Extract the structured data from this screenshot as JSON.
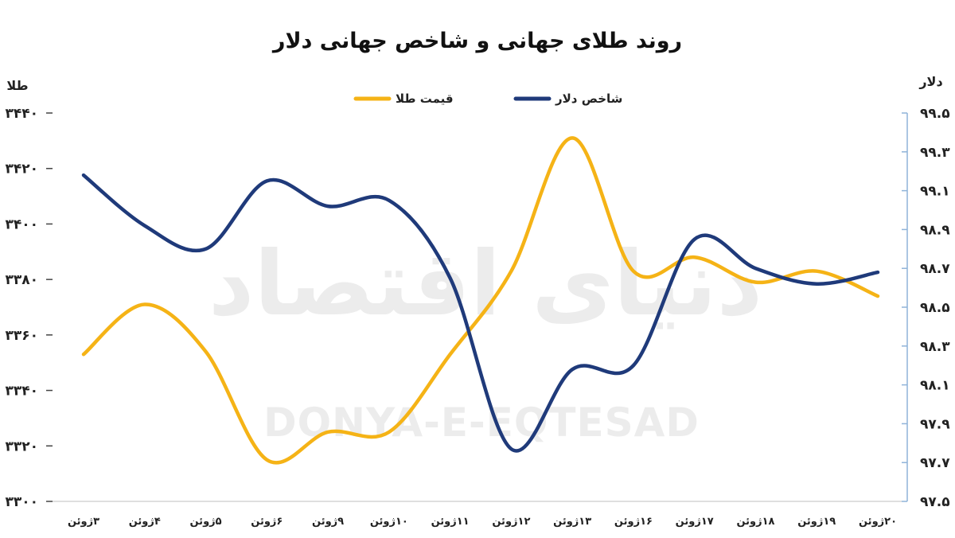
{
  "chart_data": {
    "type": "line",
    "title": "روند طلای جهانی و شاخص جهانی دلار",
    "categories": [
      "۳ژوئن",
      "۴ژوئن",
      "۵ژوئن",
      "۶ژوئن",
      "۹ژوئن",
      "۱۰ژوئن",
      "۱۱ژوئن",
      "۱۲ژوئن",
      "۱۳ژوئن",
      "۱۶ژوئن",
      "۱۷ژوئن",
      "۱۸ژوئن",
      "۱۹ژوئن",
      "۲۰ژوئن"
    ],
    "left_axis": {
      "label": "طلا",
      "range": [
        3300,
        3440
      ],
      "ticks": [
        "۳۳۰۰",
        "۳۳۲۰",
        "۳۳۴۰",
        "۳۳۶۰",
        "۳۳۸۰",
        "۳۴۰۰",
        "۳۴۲۰",
        "۳۴۴۰"
      ],
      "tick_values": [
        3300,
        3320,
        3340,
        3360,
        3380,
        3400,
        3420,
        3440
      ]
    },
    "right_axis": {
      "label": "دلار",
      "range": [
        97.5,
        99.5
      ],
      "ticks": [
        "۹۷.۵",
        "۹۷.۷",
        "۹۷.۹",
        "۹۸.۱",
        "۹۸.۳",
        "۹۸.۵",
        "۹۸.۷",
        "۹۸.۹",
        "۹۹.۱",
        "۹۹.۳",
        "۹۹.۵"
      ],
      "tick_values": [
        97.5,
        97.7,
        97.9,
        98.1,
        98.3,
        98.5,
        98.7,
        98.9,
        99.1,
        99.3,
        99.5
      ]
    },
    "series": [
      {
        "name": "قیمت طلا",
        "axis": "left",
        "color": "#f5b316",
        "values": [
          3353,
          3371,
          3354,
          3315,
          3325,
          3325,
          3353,
          3383,
          3431,
          3383,
          3388,
          3379,
          3383,
          3374
        ]
      },
      {
        "name": "شاخص دلار",
        "axis": "right",
        "color": "#1f3a7a",
        "values": [
          99.18,
          98.92,
          98.8,
          99.15,
          99.02,
          99.05,
          98.65,
          97.77,
          98.18,
          98.2,
          98.85,
          98.7,
          98.62,
          98.68
        ]
      }
    ],
    "legend": {
      "placement": "top-center"
    },
    "grid": false,
    "watermark": {
      "arabic": "دنیای اقتصاد",
      "latin": "DONYA-E-EQTESAD"
    }
  }
}
